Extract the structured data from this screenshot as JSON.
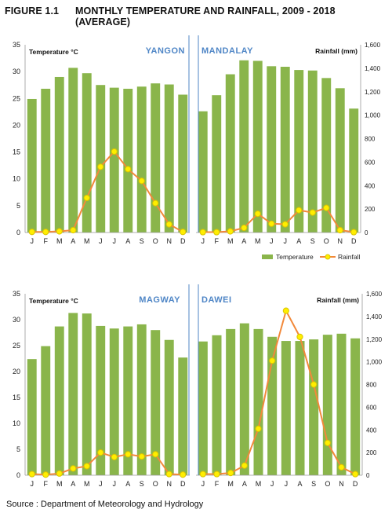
{
  "figure": {
    "label": "FIGURE 1.1",
    "title": "MONTHLY TEMPERATURE AND RAINFALL, 2009 - 2018 (AVERAGE)",
    "source": "Source : Department of Meteorology and Hydrology"
  },
  "colors": {
    "bar": "#8ab54b",
    "line": "#f2893a",
    "marker_fill": "#ffee00",
    "marker_stroke": "#d9c400",
    "city_label": "#4f86c6",
    "divider": "#4f86c6",
    "grid": "#bfbfbf"
  },
  "chart_data": [
    {
      "type": "bar",
      "title": "YANGON",
      "ylabel_left": "Temperature °C",
      "ylabel_right": "",
      "categories": [
        "J",
        "F",
        "M",
        "A",
        "M",
        "J",
        "J",
        "A",
        "S",
        "O",
        "N",
        "D"
      ],
      "ylim_left": [
        0,
        35
      ],
      "ylim_right": [
        0,
        1600
      ],
      "left_ticks": [
        "0",
        "5",
        "10",
        "15",
        "20",
        "25",
        "30",
        "35"
      ],
      "right_ticks": [],
      "series": [
        {
          "name": "Temperature",
          "type": "bar",
          "axis": "left",
          "values": [
            24.9,
            26.8,
            29.0,
            30.7,
            29.7,
            27.5,
            27.0,
            26.8,
            27.2,
            27.8,
            27.6,
            25.7
          ]
        },
        {
          "name": "Rainfall",
          "type": "line",
          "axis": "right",
          "values": [
            5,
            5,
            10,
            20,
            295,
            560,
            690,
            540,
            440,
            250,
            70,
            5
          ]
        }
      ]
    },
    {
      "type": "bar",
      "title": "MANDALAY",
      "ylabel_left": "",
      "ylabel_right": "Rainfall (mm)",
      "categories": [
        "J",
        "F",
        "M",
        "A",
        "M",
        "J",
        "J",
        "A",
        "S",
        "O",
        "N",
        "D"
      ],
      "ylim_left": [
        0,
        35
      ],
      "ylim_right": [
        0,
        1600
      ],
      "left_ticks": [],
      "right_ticks": [
        "0",
        "200",
        "400",
        "600",
        "800",
        "1,000",
        "1,200",
        "1,400",
        "1,600"
      ],
      "series": [
        {
          "name": "Temperature",
          "type": "bar",
          "axis": "left",
          "values": [
            22.6,
            25.6,
            29.5,
            32.1,
            32.0,
            31.0,
            30.9,
            30.3,
            30.2,
            28.8,
            26.9,
            23.1
          ]
        },
        {
          "name": "Rainfall",
          "type": "line",
          "axis": "right",
          "values": [
            3,
            3,
            10,
            40,
            160,
            75,
            70,
            190,
            170,
            210,
            20,
            3
          ]
        }
      ]
    },
    {
      "type": "bar",
      "title": "MAGWAY",
      "ylabel_left": "Temperature °C",
      "ylabel_right": "",
      "categories": [
        "J",
        "F",
        "M",
        "A",
        "M",
        "J",
        "J",
        "A",
        "S",
        "O",
        "N",
        "D"
      ],
      "ylim_left": [
        0,
        35
      ],
      "ylim_right": [
        0,
        1600
      ],
      "left_ticks": [
        "0",
        "5",
        "10",
        "15",
        "20",
        "25",
        "30",
        "35"
      ],
      "right_ticks": [],
      "series": [
        {
          "name": "Temperature",
          "type": "bar",
          "axis": "left",
          "values": [
            22.4,
            24.9,
            28.7,
            31.3,
            31.2,
            28.8,
            28.3,
            28.7,
            29.1,
            28.0,
            26.1,
            22.7
          ]
        },
        {
          "name": "Rainfall",
          "type": "line",
          "axis": "right",
          "values": [
            10,
            5,
            15,
            60,
            80,
            200,
            160,
            185,
            165,
            185,
            10,
            5
          ]
        }
      ]
    },
    {
      "type": "bar",
      "title": "DAWEI",
      "ylabel_left": "",
      "ylabel_right": "Rainfall (mm)",
      "categories": [
        "J",
        "F",
        "M",
        "A",
        "M",
        "J",
        "J",
        "A",
        "S",
        "O",
        "N",
        "D"
      ],
      "ylim_left": [
        0,
        35
      ],
      "ylim_right": [
        0,
        1600
      ],
      "left_ticks": [],
      "right_ticks": [
        "0",
        "200",
        "400",
        "600",
        "800",
        "1,000",
        "1,200",
        "1,400",
        "1,600"
      ],
      "series": [
        {
          "name": "Temperature",
          "type": "bar",
          "axis": "left",
          "values": [
            25.8,
            27.0,
            28.2,
            29.3,
            28.2,
            26.7,
            25.9,
            25.9,
            26.2,
            27.1,
            27.3,
            26.4
          ]
        },
        {
          "name": "Rainfall",
          "type": "line",
          "axis": "right",
          "values": [
            10,
            10,
            20,
            85,
            410,
            1010,
            1450,
            1220,
            800,
            285,
            70,
            10
          ]
        }
      ]
    }
  ],
  "legend": {
    "items": [
      {
        "name": "Temperature",
        "kind": "bar"
      },
      {
        "name": "Rainfall",
        "kind": "line"
      }
    ]
  }
}
